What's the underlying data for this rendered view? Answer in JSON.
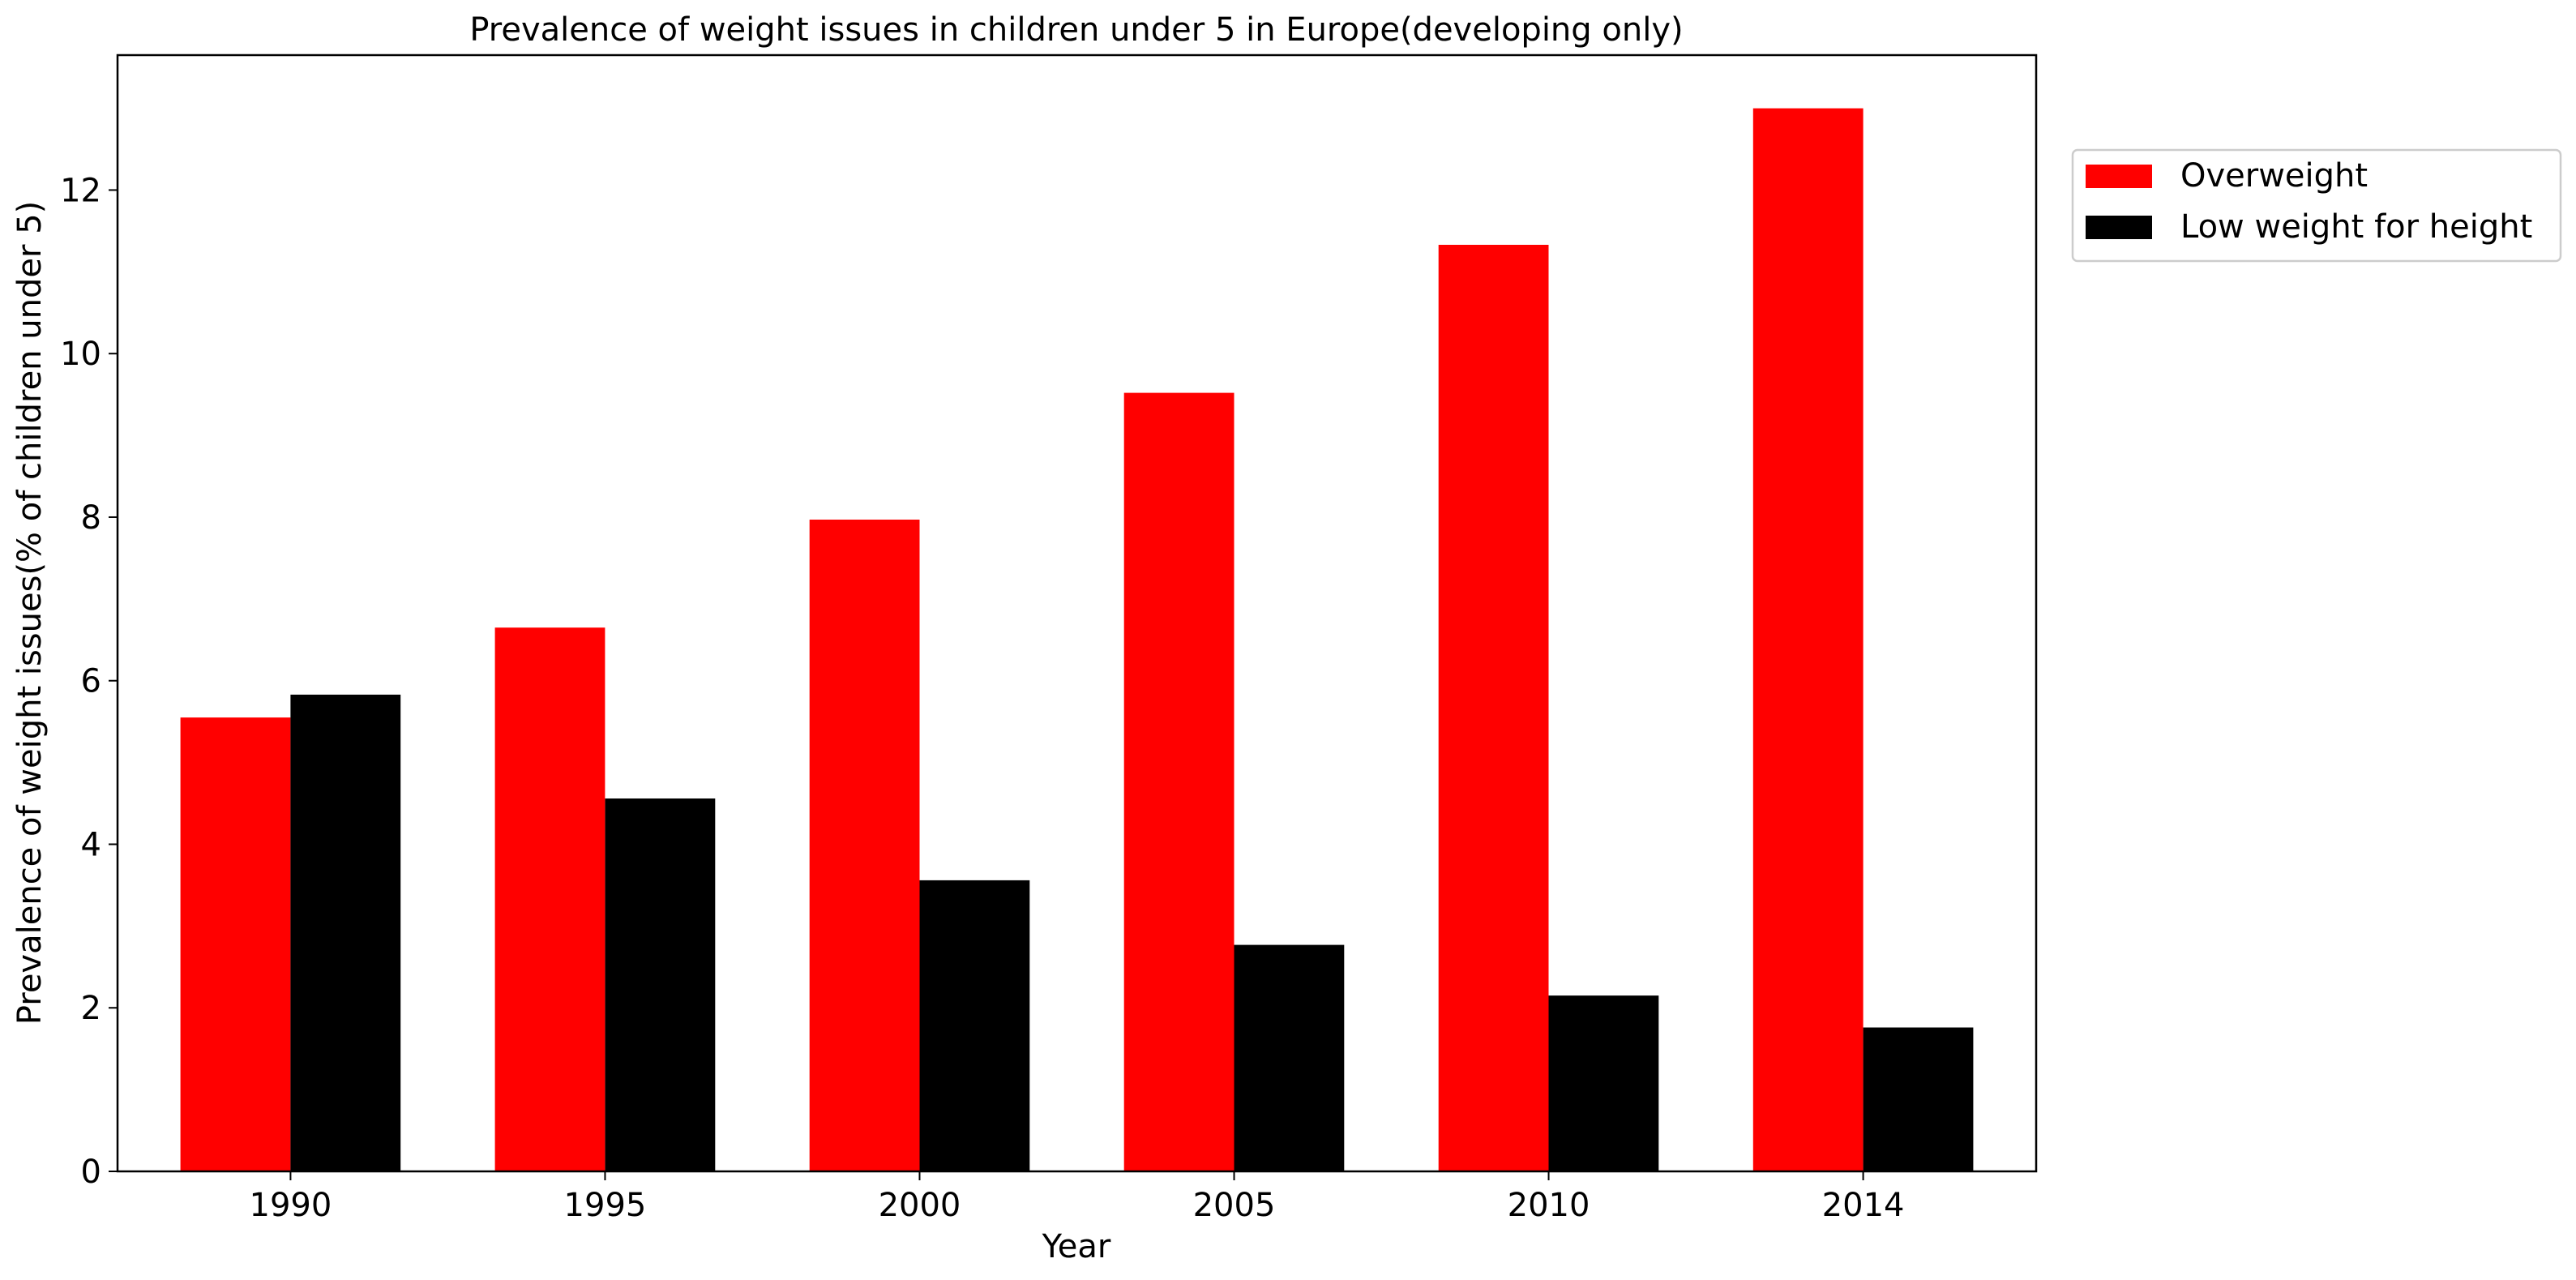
{
  "chart_data": {
    "type": "bar",
    "title": "Prevalence of weight issues in children under 5 in Europe(developing only)",
    "xlabel": "Year",
    "ylabel": "Prevalence of weight issues(% of children under 5)",
    "categories": [
      "1990",
      "1995",
      "2000",
      "2005",
      "2010",
      "2014"
    ],
    "series": [
      {
        "name": "Overweight",
        "color": "#ff0000",
        "values": [
          5.55,
          6.65,
          7.97,
          9.52,
          11.33,
          13.0
        ]
      },
      {
        "name": "Low weight for height",
        "color": "#000000",
        "values": [
          5.83,
          4.56,
          3.56,
          2.77,
          2.15,
          1.76
        ]
      }
    ],
    "ylim": [
      0,
      13.65
    ],
    "yticks": [
      0,
      2,
      4,
      6,
      8,
      10,
      12
    ],
    "grid": false,
    "legend": "outside top-right"
  }
}
